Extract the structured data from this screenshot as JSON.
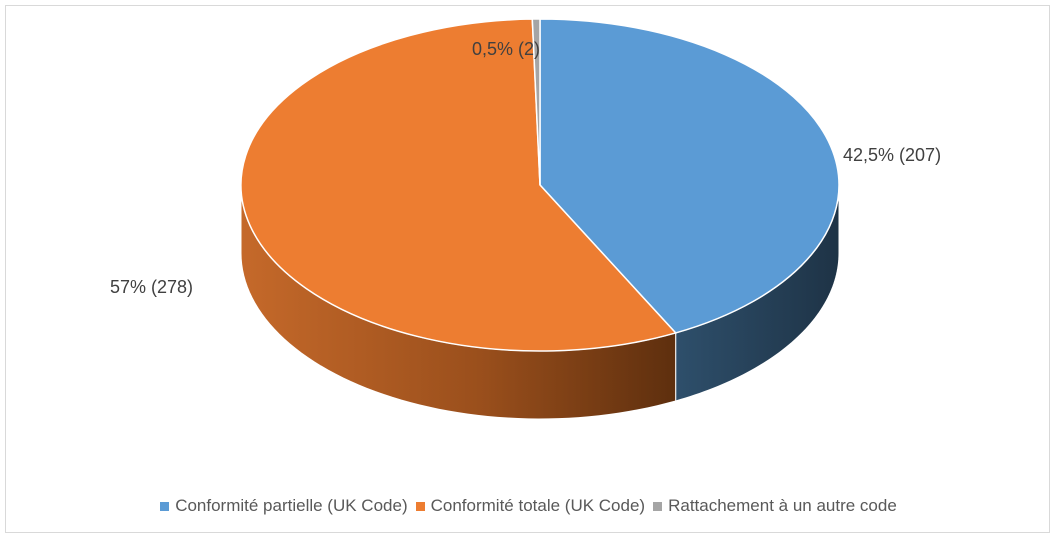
{
  "chart_data": {
    "type": "pie",
    "three_d": true,
    "title": "",
    "legend_position": "bottom",
    "series": [
      {
        "values": [
          207,
          278,
          2
        ],
        "percent_labels": [
          "42,5% (207)",
          "57% (278)",
          "0,5% (2)"
        ]
      }
    ],
    "categories": [
      "Conformité partielle (UK Code)",
      "Conformité totale (UK Code)",
      "Rattachement à un autre code"
    ],
    "colors": [
      "#5B9BD5",
      "#ED7D31",
      "#A5A5A5"
    ]
  }
}
